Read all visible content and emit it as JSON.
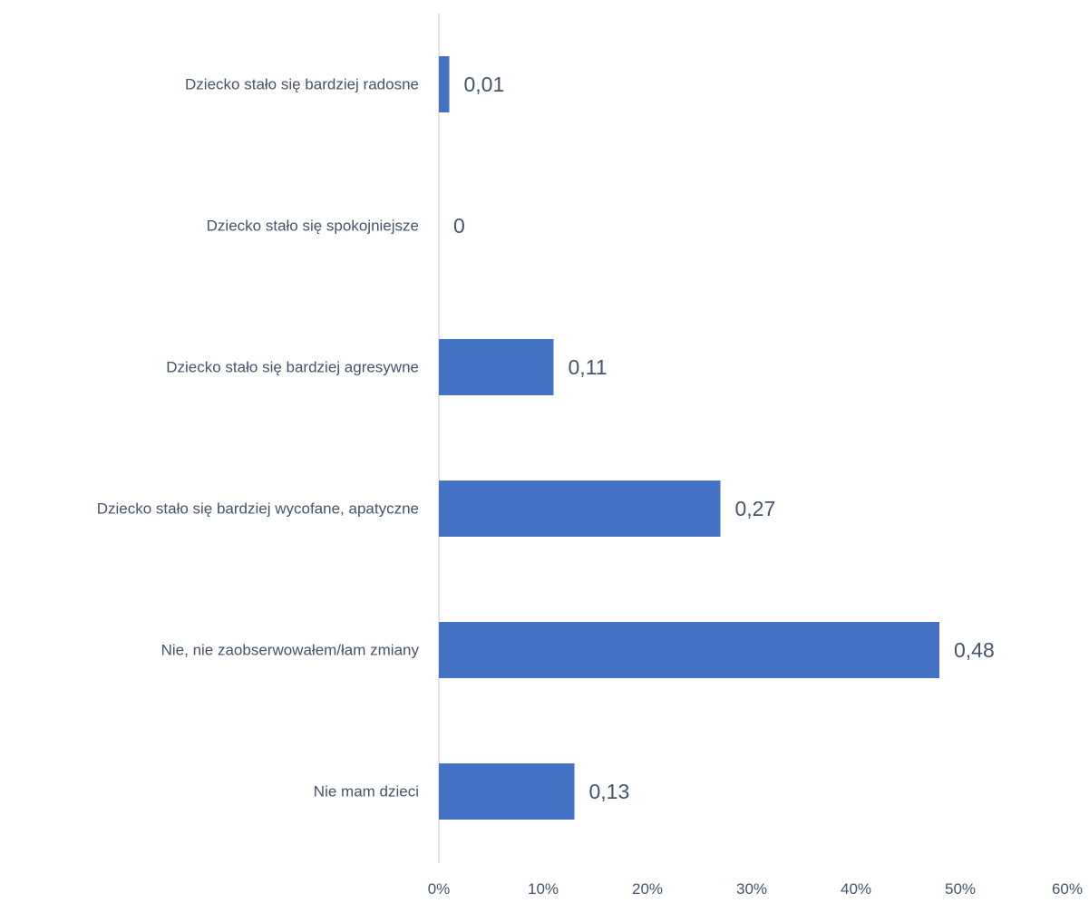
{
  "chart_data": {
    "type": "bar",
    "orientation": "horizontal",
    "categories": [
      "Dziecko stało się bardziej radosne",
      "Dziecko stało się spokojniejsze",
      "Dziecko stało się bardziej agresywne",
      "Dziecko stało się bardziej wycofane, apatyczne",
      "Nie, nie zaobserwowałem/łam zmiany",
      "Nie mam dzieci"
    ],
    "values": [
      0.01,
      0,
      0.11,
      0.27,
      0.48,
      0.13
    ],
    "data_labels": [
      "0,01",
      "0",
      "0,11",
      "0,27",
      "0,48",
      "0,13"
    ],
    "xlim": [
      0,
      0.6
    ],
    "x_ticks": [
      "0%",
      "10%",
      "20%",
      "30%",
      "40%",
      "50%",
      "60%"
    ],
    "title": "",
    "xlabel": "",
    "ylabel": "",
    "grid": false,
    "legend": "none",
    "bar_color": "#4472c4",
    "axis_color": "#d9d9d9",
    "text_color": "#44546a"
  }
}
